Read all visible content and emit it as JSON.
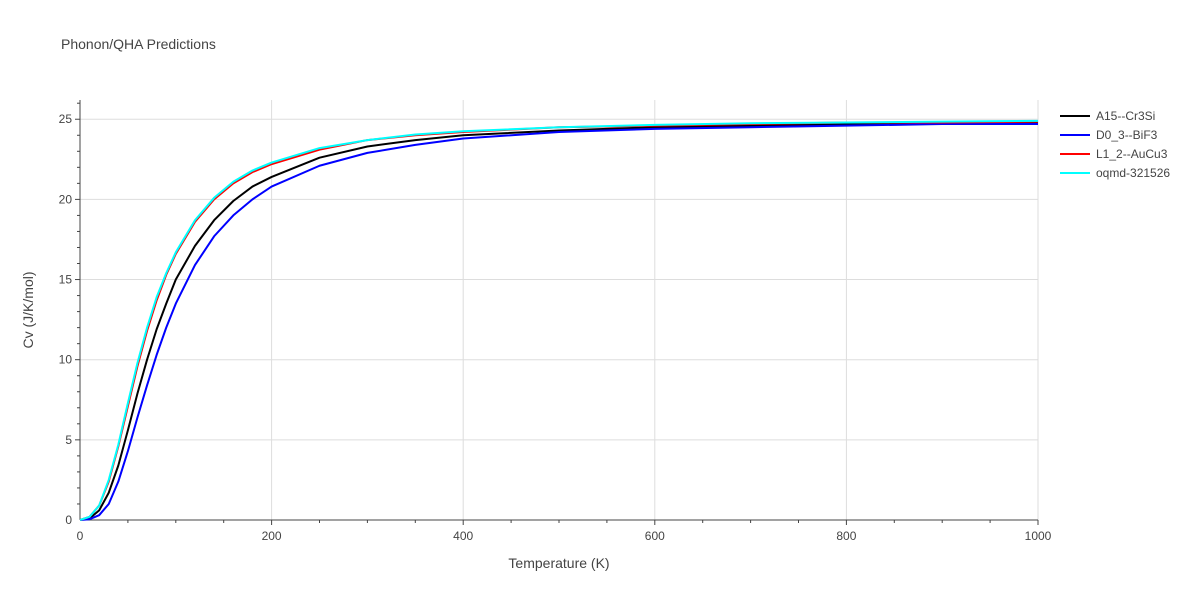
{
  "title": "Phonon/QHA Predictions",
  "colors": {
    "grid": "#dddddd",
    "axis": "#444444",
    "background": "#ffffff"
  },
  "chart_data": {
    "type": "line",
    "xlabel": "Temperature (K)",
    "ylabel": "Cv (J/K/mol)",
    "xlim": [
      0,
      1000
    ],
    "ylim": [
      0,
      26.2
    ],
    "xticks": [
      0,
      200,
      400,
      600,
      800,
      1000
    ],
    "yticks": [
      0,
      5,
      10,
      15,
      20,
      25
    ],
    "grid": true,
    "legend_position": "right",
    "series": [
      {
        "name": "A15--Cr3Si",
        "color": "#000000",
        "x": [
          0,
          10,
          20,
          30,
          40,
          50,
          60,
          70,
          80,
          90,
          100,
          120,
          140,
          160,
          180,
          200,
          250,
          300,
          350,
          400,
          500,
          600,
          700,
          800,
          900,
          1000
        ],
        "y": [
          0,
          0.1,
          0.6,
          1.7,
          3.4,
          5.6,
          7.9,
          10.0,
          11.9,
          13.5,
          15.0,
          17.1,
          18.7,
          19.9,
          20.8,
          21.4,
          22.6,
          23.3,
          23.7,
          24.0,
          24.3,
          24.5,
          24.6,
          24.7,
          24.7,
          24.8
        ]
      },
      {
        "name": "D0_3--BiF3",
        "color": "#0000ff",
        "x": [
          0,
          10,
          20,
          30,
          40,
          50,
          60,
          70,
          80,
          90,
          100,
          120,
          140,
          160,
          180,
          200,
          250,
          300,
          350,
          400,
          500,
          600,
          700,
          800,
          900,
          1000
        ],
        "y": [
          0,
          0.05,
          0.3,
          1.0,
          2.4,
          4.3,
          6.4,
          8.4,
          10.3,
          12.0,
          13.5,
          15.9,
          17.7,
          19.0,
          20.0,
          20.8,
          22.1,
          22.9,
          23.4,
          23.8,
          24.2,
          24.4,
          24.5,
          24.6,
          24.7,
          24.7
        ]
      },
      {
        "name": "L1_2--AuCu3",
        "color": "#ff0000",
        "x": [
          0,
          10,
          20,
          30,
          40,
          50,
          60,
          70,
          80,
          90,
          100,
          120,
          140,
          160,
          180,
          200,
          250,
          300,
          350,
          400,
          500,
          600,
          700,
          800,
          900,
          1000
        ],
        "y": [
          0,
          0.2,
          0.9,
          2.4,
          4.6,
          7.1,
          9.6,
          11.8,
          13.7,
          15.3,
          16.6,
          18.6,
          20.0,
          21.0,
          21.7,
          22.2,
          23.1,
          23.7,
          24.0,
          24.2,
          24.5,
          24.6,
          24.7,
          24.8,
          24.8,
          24.85
        ]
      },
      {
        "name": "oqmd-321526",
        "color": "#00ffff",
        "x": [
          0,
          10,
          20,
          30,
          40,
          50,
          60,
          70,
          80,
          90,
          100,
          120,
          140,
          160,
          180,
          200,
          250,
          300,
          350,
          400,
          500,
          600,
          700,
          800,
          900,
          1000
        ],
        "y": [
          0,
          0.2,
          0.9,
          2.5,
          4.7,
          7.3,
          9.8,
          12.0,
          13.9,
          15.4,
          16.7,
          18.7,
          20.1,
          21.1,
          21.8,
          22.3,
          23.2,
          23.7,
          24.05,
          24.25,
          24.5,
          24.65,
          24.75,
          24.8,
          24.85,
          24.9
        ]
      }
    ]
  }
}
